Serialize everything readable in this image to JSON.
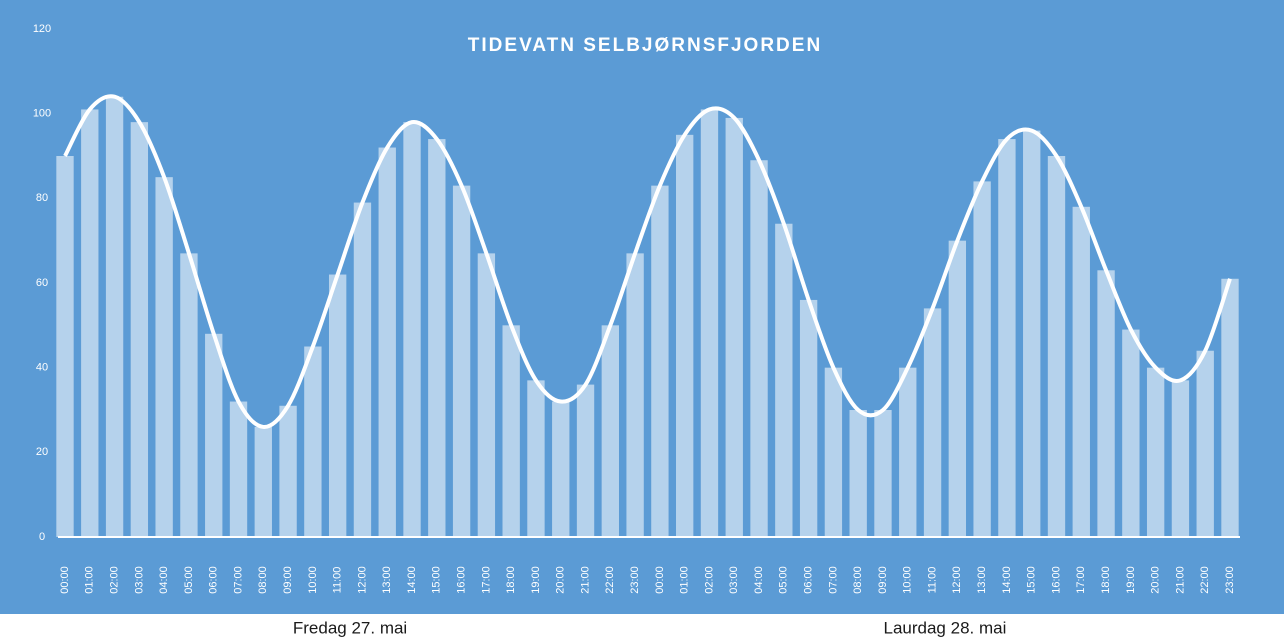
{
  "chart_data": {
    "type": "bar",
    "title": "TIDEVATN SELBJØRNSFJORDEN",
    "categories": [
      "00:00",
      "01:00",
      "02:00",
      "03:00",
      "04:00",
      "05:00",
      "06:00",
      "07:00",
      "08:00",
      "09:00",
      "10:00",
      "11:00",
      "12:00",
      "13:00",
      "14:00",
      "15:00",
      "16:00",
      "17:00",
      "18:00",
      "19:00",
      "20:00",
      "21:00",
      "22:00",
      "23:00",
      "00:00",
      "01:00",
      "02:00",
      "03:00",
      "04:00",
      "05:00",
      "06:00",
      "07:00",
      "08:00",
      "09:00",
      "10:00",
      "11:00",
      "12:00",
      "13:00",
      "14:00",
      "15:00",
      "16:00",
      "17:00",
      "18:00",
      "19:00",
      "20:00",
      "21:00",
      "22:00",
      "23:00"
    ],
    "values": [
      90,
      101,
      104,
      98,
      85,
      67,
      48,
      32,
      26,
      31,
      45,
      62,
      79,
      92,
      98,
      94,
      83,
      67,
      50,
      37,
      32,
      36,
      50,
      67,
      83,
      95,
      101,
      99,
      89,
      74,
      56,
      40,
      30,
      30,
      40,
      54,
      70,
      84,
      94,
      96,
      90,
      78,
      63,
      49,
      40,
      37,
      44,
      61
    ],
    "day_labels": [
      "Fredag 27. mai",
      "Laurdag 28. mai"
    ],
    "color": "#ffffff",
    "ylim": [
      0,
      120
    ],
    "yticks": [
      0,
      20,
      40,
      60,
      80,
      100,
      120
    ],
    "grid": false
  }
}
